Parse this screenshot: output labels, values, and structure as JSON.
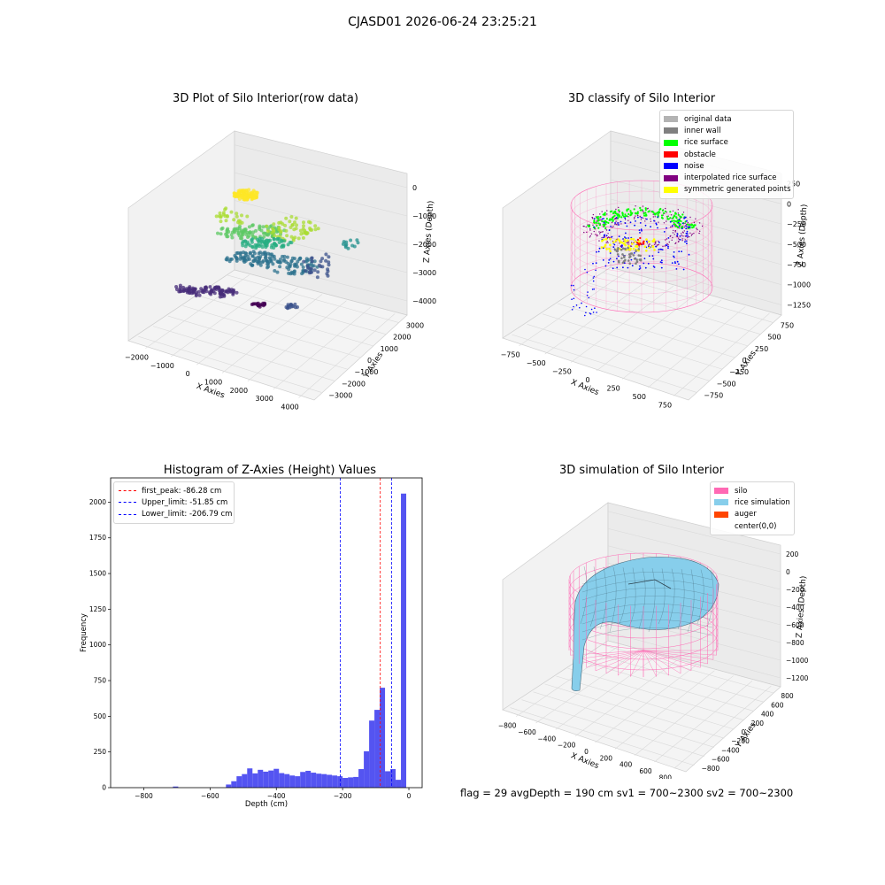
{
  "figure": {
    "title": "CJASD01 2026-06-24 23:25:21",
    "footer": "flag = 29  avgDepth = 190 cm  sv1 = 700~2300  sv2 = 700~2300"
  },
  "colors": {
    "original_data": "#b3b3b3",
    "inner_wall": "#808080",
    "rice_surface": "#00ff00",
    "obstacle": "#ff0000",
    "noise": "#0000ff",
    "interpolated_rice_surface": "#800080",
    "symmetric_generated_points": "#ffff00",
    "silo": "#ff69b4",
    "rice_simulation": "#87ceeb",
    "auger": "#ff4500",
    "hist_bars": "#4b4bf0"
  },
  "chart_data": [
    {
      "type": "scatter",
      "id": "raw",
      "title": "3D Plot of Silo Interior(row data)",
      "xlabel": "X Axies",
      "ylabel": "Y Axies",
      "zlabel": "Z Axies (Depth)",
      "x_ticks": [
        "−2000",
        "−1000",
        "0",
        "1000",
        "2000",
        "3000",
        "4000"
      ],
      "y_ticks": [
        "−3000",
        "−2000",
        "−1000",
        "0",
        "1000",
        "2000",
        "3000"
      ],
      "z_ticks": [
        "−4000",
        "−3000",
        "−2000",
        "−1000",
        "0"
      ],
      "xlim": [
        -2500,
        4500
      ],
      "ylim": [
        -3500,
        3500
      ],
      "zlim": [
        -4500,
        200
      ],
      "colormap": "viridis"
    },
    {
      "type": "scatter",
      "id": "classify",
      "title": "3D classify of Silo Interior",
      "xlabel": "X Axies",
      "ylabel": "Y Axies",
      "zlabel": "Z Axies (Depth)",
      "x_ticks": [
        "−750",
        "−500",
        "−250",
        "0",
        "250",
        "500",
        "750"
      ],
      "y_ticks": [
        "−750",
        "−500",
        "−250",
        "0",
        "250",
        "500",
        "750"
      ],
      "z_ticks": [
        "−1250",
        "−1000",
        "−750",
        "−500",
        "−250",
        "0",
        "250"
      ],
      "xlim": [
        -850,
        850
      ],
      "ylim": [
        -850,
        850
      ],
      "zlim": [
        -1400,
        300
      ],
      "legend": [
        "original data",
        "inner wall",
        "rice surface",
        "obstacle",
        "noise",
        "interpolated rice surface",
        "symmetric generated points"
      ]
    },
    {
      "type": "bar",
      "id": "histogram",
      "title": "Histogram of Z-Axies (Height) Values",
      "xlabel": "Depth (cm)",
      "ylabel": "Frequency",
      "xlim": [
        -900,
        40
      ],
      "ylim": [
        0,
        2170
      ],
      "x_ticks": [
        -800,
        -600,
        -400,
        -200,
        0
      ],
      "x_tick_labels": [
        "−800",
        "−600",
        "−400",
        "−200",
        "0"
      ],
      "y_ticks": [
        0,
        250,
        500,
        750,
        1000,
        1250,
        1500,
        1750,
        2000
      ],
      "bin_width": 16,
      "bins": [
        {
          "x0": -712,
          "value": 8
        },
        {
          "x0": -552,
          "value": 22
        },
        {
          "x0": -536,
          "value": 45
        },
        {
          "x0": -520,
          "value": 80
        },
        {
          "x0": -504,
          "value": 95
        },
        {
          "x0": -488,
          "value": 135
        },
        {
          "x0": -472,
          "value": 100
        },
        {
          "x0": -456,
          "value": 125
        },
        {
          "x0": -440,
          "value": 112
        },
        {
          "x0": -424,
          "value": 120
        },
        {
          "x0": -408,
          "value": 132
        },
        {
          "x0": -392,
          "value": 102
        },
        {
          "x0": -376,
          "value": 95
        },
        {
          "x0": -360,
          "value": 85
        },
        {
          "x0": -344,
          "value": 80
        },
        {
          "x0": -328,
          "value": 110
        },
        {
          "x0": -312,
          "value": 118
        },
        {
          "x0": -296,
          "value": 105
        },
        {
          "x0": -280,
          "value": 98
        },
        {
          "x0": -264,
          "value": 95
        },
        {
          "x0": -248,
          "value": 90
        },
        {
          "x0": -232,
          "value": 85
        },
        {
          "x0": -216,
          "value": 80
        },
        {
          "x0": -200,
          "value": 68
        },
        {
          "x0": -184,
          "value": 72
        },
        {
          "x0": -168,
          "value": 75
        },
        {
          "x0": -152,
          "value": 130
        },
        {
          "x0": -136,
          "value": 255
        },
        {
          "x0": -120,
          "value": 470
        },
        {
          "x0": -104,
          "value": 545
        },
        {
          "x0": -88,
          "value": 700
        },
        {
          "x0": -72,
          "value": 115
        },
        {
          "x0": -56,
          "value": 130
        },
        {
          "x0": -40,
          "value": 55
        },
        {
          "x0": -24,
          "value": 2060
        }
      ],
      "vlines": [
        {
          "label": "first_peak: -86.28 cm",
          "x": -86.28,
          "color": "#ff0000"
        },
        {
          "label": "Upper_limit: -51.85 cm",
          "x": -51.85,
          "color": "#0000ff"
        },
        {
          "label": "Lower_limit: -206.79 cm",
          "x": -206.79,
          "color": "#0000ff"
        }
      ]
    },
    {
      "type": "area",
      "id": "simulation",
      "title": "3D simulation of Silo Interior",
      "xlabel": "X Axies",
      "ylabel": "Y Axies",
      "zlabel": "Z Axies (Depth)",
      "x_ticks": [
        "−800",
        "−600",
        "−400",
        "−200",
        "0",
        "200",
        "400",
        "600",
        "800"
      ],
      "y_ticks": [
        "−800",
        "−600",
        "−400",
        "−200",
        "0",
        "200",
        "400",
        "600",
        "800"
      ],
      "z_ticks": [
        "−1200",
        "−1000",
        "−800",
        "−600",
        "−400",
        "−200",
        "0",
        "200"
      ],
      "xlim": [
        -900,
        900
      ],
      "ylim": [
        -900,
        900
      ],
      "zlim": [
        -1350,
        300
      ],
      "legend": [
        "silo",
        "rice simulation",
        "auger",
        "center(0,0)"
      ]
    }
  ]
}
